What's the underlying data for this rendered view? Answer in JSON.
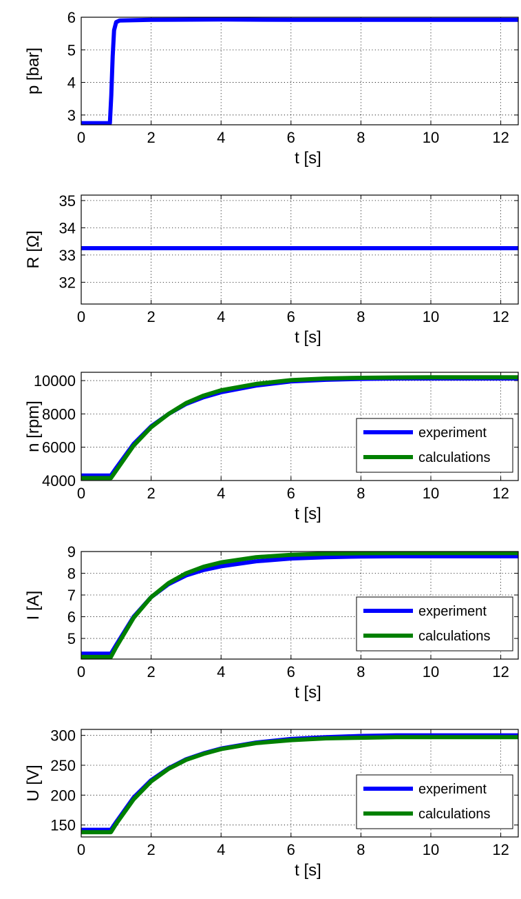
{
  "chart_data": [
    {
      "type": "line",
      "xlabel": "t [s]",
      "ylabel": "p [bar]",
      "xlim": [
        0,
        12.5
      ],
      "ylim": [
        2.7,
        6
      ],
      "xticks": [
        0,
        2,
        4,
        6,
        8,
        10,
        12
      ],
      "yticks": [
        3,
        4,
        5,
        6
      ],
      "grid": true,
      "legend": null,
      "series": [
        {
          "color": "#0000ff",
          "points": [
            [
              0,
              2.75
            ],
            [
              0.82,
              2.75
            ],
            [
              0.86,
              3.6
            ],
            [
              0.9,
              4.8
            ],
            [
              0.94,
              5.6
            ],
            [
              1.0,
              5.85
            ],
            [
              1.1,
              5.9
            ],
            [
              2,
              5.92
            ],
            [
              4,
              5.93
            ],
            [
              6,
              5.92
            ],
            [
              8,
              5.92
            ],
            [
              10,
              5.92
            ],
            [
              12.5,
              5.92
            ]
          ]
        }
      ]
    },
    {
      "type": "line",
      "xlabel": "t [s]",
      "ylabel": "R [Ω]",
      "xlim": [
        0,
        12.5
      ],
      "ylim": [
        31.2,
        35.2
      ],
      "xticks": [
        0,
        2,
        4,
        6,
        8,
        10,
        12
      ],
      "yticks": [
        32,
        33,
        34,
        35
      ],
      "grid": true,
      "legend": null,
      "series": [
        {
          "color": "#0000ff",
          "points": [
            [
              0,
              33.25
            ],
            [
              12.5,
              33.25
            ]
          ]
        }
      ]
    },
    {
      "type": "line",
      "xlabel": "t [s]",
      "ylabel": "n [rpm]",
      "xlim": [
        0,
        12.5
      ],
      "ylim": [
        4000,
        10500
      ],
      "xticks": [
        0,
        2,
        4,
        6,
        8,
        10,
        12
      ],
      "yticks": [
        4000,
        6000,
        8000,
        10000
      ],
      "grid": true,
      "legend": "bottom-right",
      "series": [
        {
          "name": "experiment",
          "color": "#0000ff",
          "points": [
            [
              0,
              4300
            ],
            [
              0.85,
              4300
            ],
            [
              1,
              4750
            ],
            [
              1.5,
              6200
            ],
            [
              2,
              7250
            ],
            [
              2.5,
              8000
            ],
            [
              3,
              8600
            ],
            [
              3.5,
              9000
            ],
            [
              4,
              9300
            ],
            [
              5,
              9700
            ],
            [
              6,
              9950
            ],
            [
              7,
              10050
            ],
            [
              8,
              10100
            ],
            [
              9,
              10130
            ],
            [
              10,
              10130
            ],
            [
              11,
              10130
            ],
            [
              12.5,
              10130
            ]
          ]
        },
        {
          "name": "calculations",
          "color": "#008000",
          "points": [
            [
              0,
              4150
            ],
            [
              0.85,
              4150
            ],
            [
              1,
              4600
            ],
            [
              1.5,
              6100
            ],
            [
              2,
              7200
            ],
            [
              2.5,
              8000
            ],
            [
              3,
              8650
            ],
            [
              3.5,
              9100
            ],
            [
              4,
              9420
            ],
            [
              5,
              9800
            ],
            [
              6,
              10030
            ],
            [
              7,
              10130
            ],
            [
              8,
              10170
            ],
            [
              9,
              10190
            ],
            [
              10,
              10200
            ],
            [
              11,
              10200
            ],
            [
              12.5,
              10200
            ]
          ]
        }
      ]
    },
    {
      "type": "line",
      "xlabel": "t [s]",
      "ylabel": "I [A]",
      "xlim": [
        0,
        12.5
      ],
      "ylim": [
        4.05,
        9
      ],
      "xticks": [
        0,
        2,
        4,
        6,
        8,
        10,
        12
      ],
      "yticks": [
        5,
        6,
        7,
        8,
        9
      ],
      "grid": true,
      "legend": "bottom-right",
      "series": [
        {
          "name": "experiment",
          "color": "#0000ff",
          "points": [
            [
              0,
              4.3
            ],
            [
              0.85,
              4.3
            ],
            [
              1,
              4.7
            ],
            [
              1.5,
              6.0
            ],
            [
              2,
              6.9
            ],
            [
              2.5,
              7.5
            ],
            [
              3,
              7.9
            ],
            [
              3.5,
              8.15
            ],
            [
              4,
              8.32
            ],
            [
              5,
              8.55
            ],
            [
              6,
              8.68
            ],
            [
              7,
              8.74
            ],
            [
              8,
              8.77
            ],
            [
              9,
              8.78
            ],
            [
              10,
              8.78
            ],
            [
              11,
              8.78
            ],
            [
              12.5,
              8.78
            ]
          ]
        },
        {
          "name": "calculations",
          "color": "#008000",
          "points": [
            [
              0,
              4.15
            ],
            [
              0.85,
              4.15
            ],
            [
              1,
              4.6
            ],
            [
              1.5,
              5.95
            ],
            [
              2,
              6.9
            ],
            [
              2.5,
              7.55
            ],
            [
              3,
              8.0
            ],
            [
              3.5,
              8.3
            ],
            [
              4,
              8.5
            ],
            [
              5,
              8.74
            ],
            [
              6,
              8.85
            ],
            [
              7,
              8.9
            ],
            [
              8,
              8.92
            ],
            [
              9,
              8.93
            ],
            [
              10,
              8.93
            ],
            [
              11,
              8.93
            ],
            [
              12.5,
              8.93
            ]
          ]
        }
      ]
    },
    {
      "type": "line",
      "xlabel": "t [s]",
      "ylabel": "U [V]",
      "xlim": [
        0,
        12.5
      ],
      "ylim": [
        130,
        310
      ],
      "xticks": [
        0,
        2,
        4,
        6,
        8,
        10,
        12
      ],
      "yticks": [
        150,
        200,
        250,
        300
      ],
      "grid": true,
      "legend": "bottom-right",
      "series": [
        {
          "name": "experiment",
          "color": "#0000ff",
          "points": [
            [
              0,
              142
            ],
            [
              0.85,
              142
            ],
            [
              1,
              155
            ],
            [
              1.5,
              196
            ],
            [
              2,
              225
            ],
            [
              2.5,
              245
            ],
            [
              3,
              260
            ],
            [
              3.5,
              270
            ],
            [
              4,
              278
            ],
            [
              5,
              288
            ],
            [
              6,
              294
            ],
            [
              7,
              297
            ],
            [
              8,
              299
            ],
            [
              9,
              300
            ],
            [
              10,
              300
            ],
            [
              11,
              300
            ],
            [
              12.5,
              300
            ]
          ]
        },
        {
          "name": "calculations",
          "color": "#008000",
          "points": [
            [
              0,
              138
            ],
            [
              0.85,
              138
            ],
            [
              1,
              152
            ],
            [
              1.5,
              193
            ],
            [
              2,
              223
            ],
            [
              2.5,
              244
            ],
            [
              3,
              259
            ],
            [
              3.5,
              269
            ],
            [
              4,
              277
            ],
            [
              5,
              287
            ],
            [
              6,
              292
            ],
            [
              7,
              295
            ],
            [
              8,
              296
            ],
            [
              9,
              297
            ],
            [
              10,
              297
            ],
            [
              11,
              297
            ],
            [
              12.5,
              297
            ]
          ]
        }
      ]
    }
  ]
}
